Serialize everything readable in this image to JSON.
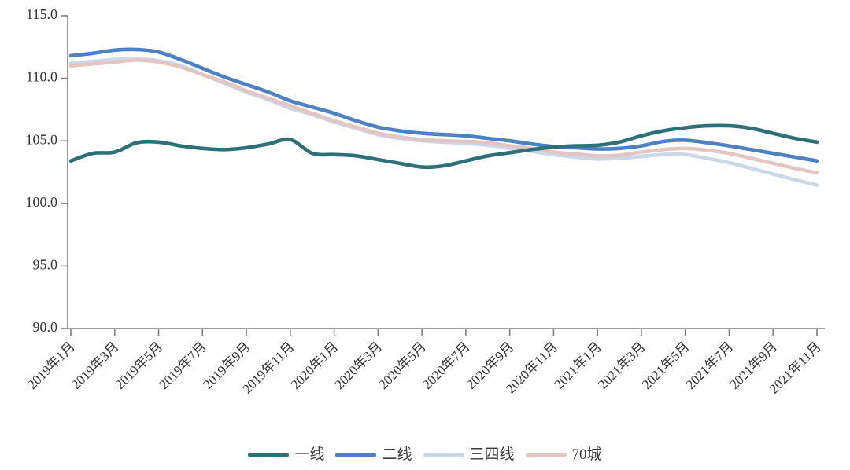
{
  "chart_data": {
    "type": "line",
    "title": "",
    "xlabel": "",
    "ylabel": "",
    "ylim": [
      90,
      115
    ],
    "yticks": [
      90,
      95,
      100,
      105,
      110,
      115
    ],
    "ytick_labels": [
      "90.0",
      "95.0",
      "100.0",
      "105.0",
      "110.0",
      "115.0"
    ],
    "grid": false,
    "legend_position": "bottom-center",
    "x_tick_every": 2,
    "x_tick_labels": [
      "2019年1月",
      "2019年3月",
      "2019年5月",
      "2019年7月",
      "2019年9月",
      "2019年11月",
      "2020年1月",
      "2020年3月",
      "2020年5月",
      "2020年7月",
      "2020年9月",
      "2020年11月",
      "2021年1月",
      "2021年3月",
      "2021年5月",
      "2021年7月",
      "2021年9月",
      "2021年11月"
    ],
    "categories": [
      "2019年1月",
      "2019年2月",
      "2019年3月",
      "2019年4月",
      "2019年5月",
      "2019年6月",
      "2019年7月",
      "2019年8月",
      "2019年9月",
      "2019年10月",
      "2019年11月",
      "2019年12月",
      "2020年1月",
      "2020年2月",
      "2020年3月",
      "2020年4月",
      "2020年5月",
      "2020年6月",
      "2020年7月",
      "2020年8月",
      "2020年9月",
      "2020年10月",
      "2020年11月",
      "2020年12月",
      "2021年1月",
      "2021年2月",
      "2021年3月",
      "2021年4月",
      "2021年5月",
      "2021年6月",
      "2021年7月",
      "2021年8月",
      "2021年9月",
      "2021年10月",
      "2021年11月"
    ],
    "series": [
      {
        "name": "一线",
        "color": "#2e7078",
        "values": [
          103.4,
          104.0,
          104.1,
          104.85,
          104.9,
          104.6,
          104.4,
          104.3,
          104.45,
          104.75,
          105.1,
          104.0,
          103.9,
          103.8,
          103.5,
          103.2,
          102.9,
          103.0,
          103.4,
          103.8,
          104.05,
          104.3,
          104.5,
          104.6,
          104.65,
          104.9,
          105.4,
          105.8,
          106.05,
          106.2,
          106.2,
          106.0,
          105.6,
          105.2,
          104.9
        ]
      },
      {
        "name": "二线",
        "color": "#4d81c2",
        "values": [
          111.8,
          112.0,
          112.25,
          112.3,
          112.1,
          111.5,
          110.8,
          110.1,
          109.5,
          108.9,
          108.2,
          107.7,
          107.2,
          106.6,
          106.1,
          105.8,
          105.6,
          105.5,
          105.4,
          105.2,
          105.0,
          104.75,
          104.55,
          104.45,
          104.35,
          104.4,
          104.6,
          104.95,
          105.05,
          104.85,
          104.6,
          104.3,
          104.0,
          103.7,
          103.4
        ]
      },
      {
        "name": "三四线",
        "color": "#ccd7e8",
        "values": [
          111.2,
          111.35,
          111.5,
          111.55,
          111.4,
          111.0,
          110.3,
          109.6,
          108.9,
          108.3,
          107.6,
          107.1,
          106.5,
          106.0,
          105.5,
          105.2,
          105.0,
          104.9,
          104.8,
          104.65,
          104.4,
          104.15,
          103.9,
          103.7,
          103.55,
          103.6,
          103.75,
          103.9,
          103.9,
          103.6,
          103.25,
          102.8,
          102.35,
          101.9,
          101.45
        ]
      },
      {
        "name": "70城",
        "color": "#e3c5c4",
        "values": [
          111.0,
          111.15,
          111.3,
          111.45,
          111.3,
          110.9,
          110.3,
          109.7,
          109.0,
          108.4,
          107.8,
          107.2,
          106.6,
          106.1,
          105.6,
          105.3,
          105.1,
          105.0,
          104.95,
          104.85,
          104.6,
          104.4,
          104.1,
          103.95,
          103.8,
          103.85,
          104.1,
          104.3,
          104.4,
          104.25,
          104.0,
          103.6,
          103.2,
          102.8,
          102.45
        ]
      }
    ],
    "axis_color": "#7f7f7f",
    "tick_label_color": "#333333"
  }
}
